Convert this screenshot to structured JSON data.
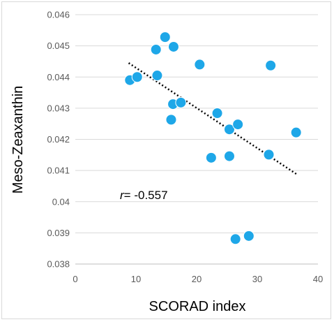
{
  "chart_data": {
    "type": "scatter",
    "title": "",
    "xlabel": "SCORAD index",
    "ylabel": "Meso-Zeaxanthin",
    "xlim": [
      0,
      40
    ],
    "ylim": [
      0.038,
      0.046
    ],
    "x_ticks": [
      "0",
      "10",
      "20",
      "30",
      "40"
    ],
    "y_ticks": [
      "0.038",
      "0.039",
      "0.04",
      "0.041",
      "0.042",
      "0.043",
      "0.044",
      "0.045",
      "0.046"
    ],
    "grid": "horizontal",
    "legend": "none",
    "marker_color": "#1ea7e8",
    "trendline": {
      "style": "dotted",
      "color": "#000000",
      "x": [
        8.8,
        36.5
      ],
      "y": [
        0.04445,
        0.04088
      ]
    },
    "annotation": {
      "label_italic": "r",
      "label_rest": "= -0.557"
    },
    "points": [
      {
        "x": 9.0,
        "y": 0.0439
      },
      {
        "x": 10.2,
        "y": 0.044
      },
      {
        "x": 13.3,
        "y": 0.04488
      },
      {
        "x": 14.8,
        "y": 0.04528
      },
      {
        "x": 16.2,
        "y": 0.04497
      },
      {
        "x": 13.5,
        "y": 0.04405
      },
      {
        "x": 16.1,
        "y": 0.04313
      },
      {
        "x": 17.4,
        "y": 0.04318
      },
      {
        "x": 15.8,
        "y": 0.04263
      },
      {
        "x": 20.5,
        "y": 0.0444
      },
      {
        "x": 23.4,
        "y": 0.04284
      },
      {
        "x": 25.4,
        "y": 0.04232
      },
      {
        "x": 26.8,
        "y": 0.04248
      },
      {
        "x": 22.4,
        "y": 0.04141
      },
      {
        "x": 25.4,
        "y": 0.04146
      },
      {
        "x": 32.2,
        "y": 0.04437
      },
      {
        "x": 31.9,
        "y": 0.04151
      },
      {
        "x": 36.4,
        "y": 0.04222
      },
      {
        "x": 26.4,
        "y": 0.0388
      },
      {
        "x": 28.6,
        "y": 0.0389
      }
    ]
  }
}
